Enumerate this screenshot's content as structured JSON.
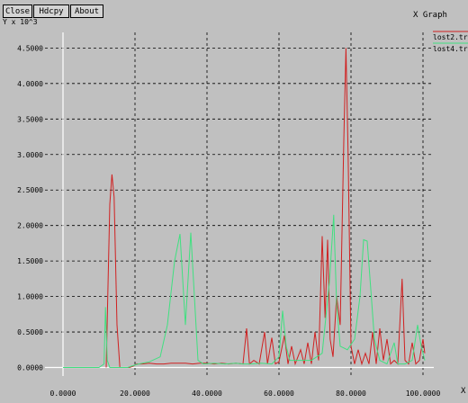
{
  "window": {
    "title": "X Graph",
    "buttons": {
      "close": "Close",
      "hdcpy": "Hdcpy",
      "about": "About"
    }
  },
  "colors": {
    "background": "#c0c0c0",
    "grid": "#000000",
    "axis": "#ffffff",
    "series1": "#d02020",
    "series2": "#40e080"
  },
  "chart_data": {
    "type": "line",
    "title": "",
    "xlabel": "X",
    "ylabel": "Y x 10^3",
    "xlim": [
      -5000,
      103000
    ],
    "ylim": [
      -0.12,
      4.72
    ],
    "xticks": [
      {
        "value": 0,
        "label": "0.0000"
      },
      {
        "value": 20000,
        "label": "20.0000"
      },
      {
        "value": 40000,
        "label": "40.0000"
      },
      {
        "value": 60000,
        "label": "60.0000"
      },
      {
        "value": 80000,
        "label": "80.0000"
      },
      {
        "value": 100000,
        "label": "100.0000"
      }
    ],
    "yticks": [
      {
        "value": 0,
        "label": "0.0000"
      },
      {
        "value": 0.5,
        "label": "0.5000"
      },
      {
        "value": 1.0,
        "label": "1.0000"
      },
      {
        "value": 1.5,
        "label": "1.5000"
      },
      {
        "value": 2.0,
        "label": "2.0000"
      },
      {
        "value": 2.5,
        "label": "2.5000"
      },
      {
        "value": 3.0,
        "label": "3.0000"
      },
      {
        "value": 3.5,
        "label": "3.5000"
      },
      {
        "value": 4.0,
        "label": "4.0000"
      },
      {
        "value": 4.5,
        "label": "4.5000"
      }
    ],
    "grid": true,
    "legend_position": "top-right",
    "series": [
      {
        "name": "lost2.tr",
        "color": "#d02020",
        "points": [
          [
            12000,
            0
          ],
          [
            13000,
            2.3
          ],
          [
            13600,
            2.72
          ],
          [
            14200,
            2.4
          ],
          [
            15000,
            0.6
          ],
          [
            15800,
            0
          ],
          [
            18500,
            0
          ],
          [
            19500,
            0.02
          ],
          [
            20500,
            0.05
          ],
          [
            22000,
            0.05
          ],
          [
            24000,
            0.06
          ],
          [
            26000,
            0.05
          ],
          [
            28000,
            0.05
          ],
          [
            30000,
            0.06
          ],
          [
            32000,
            0.06
          ],
          [
            34000,
            0.06
          ],
          [
            36000,
            0.05
          ],
          [
            38000,
            0.06
          ],
          [
            40000,
            0.06
          ],
          [
            42000,
            0.05
          ],
          [
            44000,
            0.06
          ],
          [
            46000,
            0.05
          ],
          [
            48000,
            0.06
          ],
          [
            50000,
            0.05
          ],
          [
            51000,
            0.55
          ],
          [
            51800,
            0.05
          ],
          [
            53000,
            0.1
          ],
          [
            54500,
            0.05
          ],
          [
            56000,
            0.5
          ],
          [
            56800,
            0.05
          ],
          [
            58000,
            0.42
          ],
          [
            59000,
            0.05
          ],
          [
            60000,
            0.08
          ],
          [
            61500,
            0.45
          ],
          [
            62500,
            0.05
          ],
          [
            63500,
            0.3
          ],
          [
            64500,
            0.05
          ],
          [
            66000,
            0.25
          ],
          [
            67000,
            0.05
          ],
          [
            68000,
            0.35
          ],
          [
            69000,
            0.05
          ],
          [
            70000,
            0.5
          ],
          [
            71000,
            0.1
          ],
          [
            72000,
            1.85
          ],
          [
            72800,
            0.7
          ],
          [
            73500,
            1.8
          ],
          [
            74200,
            0.4
          ],
          [
            75000,
            0.15
          ],
          [
            76000,
            1.0
          ],
          [
            77000,
            0.6
          ],
          [
            78000,
            3.2
          ],
          [
            78600,
            4.5
          ],
          [
            79200,
            3.0
          ],
          [
            80000,
            0.3
          ],
          [
            81000,
            0.05
          ],
          [
            82000,
            0.25
          ],
          [
            83000,
            0.05
          ],
          [
            84000,
            0.2
          ],
          [
            85000,
            0.05
          ],
          [
            86000,
            0.5
          ],
          [
            87000,
            0.05
          ],
          [
            88000,
            0.55
          ],
          [
            89000,
            0.1
          ],
          [
            90000,
            0.4
          ],
          [
            91000,
            0.05
          ],
          [
            92000,
            0.1
          ],
          [
            93000,
            0.05
          ],
          [
            94200,
            1.25
          ],
          [
            95000,
            0.1
          ],
          [
            96000,
            0.05
          ],
          [
            97000,
            0.35
          ],
          [
            98000,
            0.05
          ],
          [
            99000,
            0.1
          ],
          [
            100000,
            0.4
          ],
          [
            100500,
            0.2
          ]
        ]
      },
      {
        "name": "lost4.tr",
        "color": "#40e080",
        "points": [
          [
            0,
            0
          ],
          [
            5000,
            0
          ],
          [
            10000,
            0
          ],
          [
            11400,
            0.05
          ],
          [
            11800,
            0.85
          ],
          [
            12300,
            0.1
          ],
          [
            13000,
            0
          ],
          [
            18000,
            0
          ],
          [
            19000,
            0.02
          ],
          [
            21000,
            0.05
          ],
          [
            24000,
            0.08
          ],
          [
            27000,
            0.15
          ],
          [
            29000,
            0.6
          ],
          [
            31000,
            1.5
          ],
          [
            32500,
            1.88
          ],
          [
            34000,
            0.6
          ],
          [
            35500,
            1.9
          ],
          [
            36500,
            1.0
          ],
          [
            37500,
            0.1
          ],
          [
            39000,
            0.05
          ],
          [
            42000,
            0.06
          ],
          [
            45000,
            0.05
          ],
          [
            48000,
            0.06
          ],
          [
            50000,
            0.05
          ],
          [
            52000,
            0.05
          ],
          [
            55000,
            0.06
          ],
          [
            58000,
            0.05
          ],
          [
            60000,
            0.15
          ],
          [
            61000,
            0.8
          ],
          [
            62000,
            0.3
          ],
          [
            63000,
            0.1
          ],
          [
            66000,
            0.1
          ],
          [
            69000,
            0.1
          ],
          [
            72000,
            0.2
          ],
          [
            74000,
            1.2
          ],
          [
            75200,
            2.15
          ],
          [
            76000,
            0.9
          ],
          [
            77000,
            0.3
          ],
          [
            79000,
            0.25
          ],
          [
            81000,
            0.4
          ],
          [
            82500,
            1.0
          ],
          [
            83500,
            1.8
          ],
          [
            84500,
            1.78
          ],
          [
            85500,
            1.1
          ],
          [
            86500,
            0.4
          ],
          [
            88000,
            0.1
          ],
          [
            90000,
            0.05
          ],
          [
            92000,
            0.35
          ],
          [
            93000,
            0.05
          ],
          [
            95000,
            0.05
          ],
          [
            97000,
            0.1
          ],
          [
            98500,
            0.6
          ],
          [
            99500,
            0.3
          ],
          [
            100500,
            0.1
          ]
        ]
      }
    ]
  }
}
